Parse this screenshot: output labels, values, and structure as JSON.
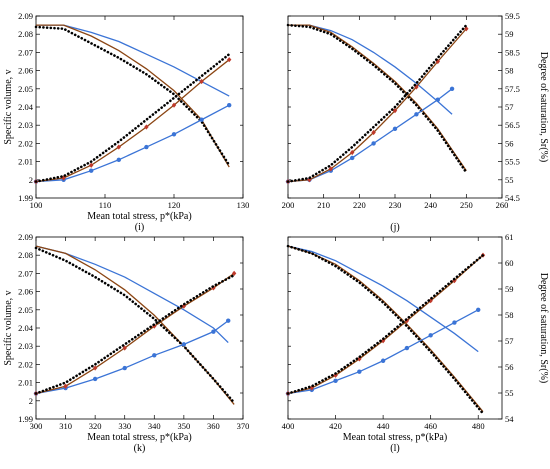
{
  "figure": {
    "colors": {
      "blue": "#3b74d6",
      "red": "#c0392b",
      "brown": "#8b4513",
      "black": "#000000"
    },
    "legend": "none"
  },
  "chart_data": [
    {
      "id": "i",
      "type": "line",
      "caption": "(i)",
      "xlabel": "Mean total stress, p*(kPa)",
      "ylabel": "Specific volume, v",
      "y2label": "",
      "xlim": [
        100,
        130
      ],
      "xticks": [
        100,
        110,
        120,
        130
      ],
      "ylim": [
        1.99,
        2.09
      ],
      "yticks": [
        1.99,
        2,
        2.01,
        2.02,
        2.03,
        2.04,
        2.05,
        2.06,
        2.07,
        2.08,
        2.09
      ],
      "y2lim": [
        54,
        59
      ],
      "y2ticks": [],
      "series": [
        {
          "axis": "y",
          "color": "#3b74d6",
          "style": "solid",
          "x": [
            100,
            104,
            108,
            112,
            116,
            120,
            124,
            128
          ],
          "y": [
            2.085,
            2.085,
            2.081,
            2.076,
            2.069,
            2.062,
            2.054,
            2.046
          ]
        },
        {
          "axis": "y",
          "color": "#8b4513",
          "style": "solid",
          "x": [
            100,
            104,
            108,
            112,
            116,
            120,
            124,
            128
          ],
          "y": [
            2.085,
            2.085,
            2.079,
            2.071,
            2.061,
            2.049,
            2.033,
            2.007
          ]
        },
        {
          "axis": "y",
          "color": "#000000",
          "style": "dotted",
          "x": [
            100,
            104,
            108,
            112,
            116,
            120,
            124,
            128
          ],
          "y": [
            2.084,
            2.083,
            2.075,
            2.067,
            2.058,
            2.047,
            2.032,
            2.008
          ]
        },
        {
          "axis": "y",
          "color": "#3b74d6",
          "style": "solid",
          "marker": "circle",
          "x": [
            100,
            104,
            108,
            112,
            116,
            120,
            124,
            128
          ],
          "y": [
            1.999,
            2.0,
            2.005,
            2.011,
            2.018,
            2.025,
            2.033,
            2.041
          ]
        },
        {
          "axis": "y",
          "color": "#8b4513",
          "style": "solid",
          "marker": "diamond",
          "x": [
            100,
            104,
            108,
            112,
            116,
            120,
            124,
            128
          ],
          "y": [
            1.999,
            2.001,
            2.008,
            2.018,
            2.029,
            2.041,
            2.054,
            2.066
          ]
        },
        {
          "axis": "y",
          "color": "#000000",
          "style": "dotted",
          "x": [
            100,
            104,
            108,
            112,
            116,
            120,
            124,
            128
          ],
          "y": [
            1.999,
            2.002,
            2.01,
            2.021,
            2.033,
            2.045,
            2.057,
            2.069
          ]
        }
      ]
    },
    {
      "id": "j",
      "type": "line",
      "caption": "(j)",
      "xlabel": "",
      "ylabel": "",
      "y2label": "Degree of saturation, Sr(%)",
      "xlim": [
        200,
        260
      ],
      "xticks": [
        200,
        210,
        220,
        230,
        240,
        250,
        260
      ],
      "ylim": [
        1.99,
        2.09
      ],
      "yticks": [],
      "y2lim": [
        54.5,
        59.5
      ],
      "y2ticks": [
        54.5,
        55,
        55.5,
        56,
        56.5,
        57,
        57.5,
        58,
        58.5,
        59,
        59.5
      ],
      "series": [
        {
          "axis": "y",
          "color": "#3b74d6",
          "style": "solid",
          "x": [
            200,
            206,
            212,
            218,
            224,
            230,
            236,
            242,
            246
          ],
          "y": [
            2.085,
            2.085,
            2.082,
            2.077,
            2.07,
            2.062,
            2.053,
            2.043,
            2.036
          ]
        },
        {
          "axis": "y",
          "color": "#8b4513",
          "style": "solid",
          "x": [
            200,
            206,
            212,
            218,
            224,
            230,
            236,
            242,
            250
          ],
          "y": [
            2.085,
            2.085,
            2.081,
            2.073,
            2.064,
            2.054,
            2.042,
            2.028,
            2.005
          ]
        },
        {
          "axis": "y",
          "color": "#000000",
          "style": "dotted",
          "x": [
            200,
            206,
            212,
            218,
            224,
            230,
            236,
            242,
            250
          ],
          "y": [
            2.085,
            2.084,
            2.08,
            2.072,
            2.063,
            2.053,
            2.041,
            2.027,
            2.004
          ]
        },
        {
          "axis": "y",
          "color": "#3b74d6",
          "style": "solid",
          "marker": "circle",
          "x": [
            200,
            206,
            212,
            218,
            224,
            230,
            236,
            242,
            246
          ],
          "y": [
            1.999,
            2.0,
            2.005,
            2.012,
            2.02,
            2.028,
            2.036,
            2.044,
            2.05
          ]
        },
        {
          "axis": "y",
          "color": "#8b4513",
          "style": "solid",
          "marker": "diamond",
          "x": [
            200,
            206,
            212,
            218,
            224,
            230,
            236,
            242,
            250
          ],
          "y": [
            1.999,
            2.0,
            2.006,
            2.015,
            2.026,
            2.038,
            2.051,
            2.065,
            2.083
          ]
        },
        {
          "axis": "y",
          "color": "#000000",
          "style": "dotted",
          "x": [
            200,
            206,
            212,
            218,
            224,
            230,
            236,
            242,
            250
          ],
          "y": [
            1.999,
            2.001,
            2.008,
            2.018,
            2.029,
            2.04,
            2.053,
            2.067,
            2.085
          ]
        }
      ]
    },
    {
      "id": "k",
      "type": "line",
      "caption": "(k)",
      "xlabel": "Mean total stress, p*(kPa)",
      "ylabel": "Specific volume, v",
      "y2label": "",
      "xlim": [
        300,
        370
      ],
      "xticks": [
        300,
        310,
        320,
        330,
        340,
        350,
        360,
        370
      ],
      "ylim": [
        1.99,
        2.09
      ],
      "yticks": [
        1.99,
        2,
        2.01,
        2.02,
        2.03,
        2.04,
        2.05,
        2.06,
        2.07,
        2.08,
        2.09
      ],
      "y2lim": [
        54,
        61
      ],
      "y2ticks": [],
      "series": [
        {
          "axis": "y",
          "color": "#3b74d6",
          "style": "solid",
          "x": [
            300,
            310,
            320,
            330,
            340,
            350,
            360,
            365
          ],
          "y": [
            2.085,
            2.081,
            2.075,
            2.068,
            2.059,
            2.05,
            2.04,
            2.032
          ]
        },
        {
          "axis": "y",
          "color": "#8b4513",
          "style": "solid",
          "x": [
            300,
            310,
            320,
            330,
            340,
            350,
            360,
            367
          ],
          "y": [
            2.085,
            2.081,
            2.072,
            2.061,
            2.047,
            2.03,
            2.012,
            1.998
          ]
        },
        {
          "axis": "y",
          "color": "#000000",
          "style": "dotted",
          "x": [
            300,
            310,
            320,
            330,
            340,
            350,
            360,
            367
          ],
          "y": [
            2.084,
            2.077,
            2.068,
            2.058,
            2.045,
            2.03,
            2.012,
            1.999
          ]
        },
        {
          "axis": "y",
          "color": "#3b74d6",
          "style": "solid",
          "marker": "circle",
          "x": [
            300,
            310,
            320,
            330,
            340,
            350,
            360,
            365
          ],
          "y": [
            2.004,
            2.007,
            2.012,
            2.018,
            2.025,
            2.031,
            2.038,
            2.044
          ]
        },
        {
          "axis": "y",
          "color": "#8b4513",
          "style": "solid",
          "marker": "diamond",
          "x": [
            300,
            310,
            320,
            330,
            340,
            350,
            360,
            367
          ],
          "y": [
            2.004,
            2.008,
            2.018,
            2.029,
            2.041,
            2.052,
            2.062,
            2.07
          ]
        },
        {
          "axis": "y",
          "color": "#000000",
          "style": "dotted",
          "x": [
            300,
            310,
            320,
            330,
            340,
            350,
            360,
            367
          ],
          "y": [
            2.004,
            2.01,
            2.02,
            2.031,
            2.042,
            2.053,
            2.063,
            2.069
          ]
        }
      ]
    },
    {
      "id": "l",
      "type": "line",
      "caption": "(l)",
      "xlabel": "Mean total stress, p*(kPa)",
      "ylabel": "",
      "y2label": "Degree of saturation, Sr(%)",
      "xlim": [
        400,
        490
      ],
      "xticks": [
        400,
        420,
        440,
        460,
        480
      ],
      "ylim": [
        1.99,
        2.09
      ],
      "yticks": [],
      "y2lim": [
        54,
        61
      ],
      "y2ticks": [
        54,
        55,
        56,
        57,
        58,
        59,
        60,
        61
      ],
      "series": [
        {
          "axis": "y",
          "color": "#3b74d6",
          "style": "solid",
          "x": [
            400,
            410,
            420,
            430,
            440,
            450,
            460,
            470,
            480
          ],
          "y": [
            2.085,
            2.082,
            2.077,
            2.07,
            2.063,
            2.055,
            2.046,
            2.037,
            2.027
          ]
        },
        {
          "axis": "y",
          "color": "#8b4513",
          "style": "solid",
          "x": [
            400,
            410,
            420,
            430,
            440,
            450,
            460,
            470,
            482
          ],
          "y": [
            2.085,
            2.081,
            2.075,
            2.066,
            2.055,
            2.042,
            2.028,
            2.013,
            1.994
          ]
        },
        {
          "axis": "y",
          "color": "#000000",
          "style": "dotted",
          "x": [
            400,
            410,
            420,
            430,
            440,
            450,
            460,
            470,
            482
          ],
          "y": [
            2.085,
            2.081,
            2.074,
            2.065,
            2.054,
            2.041,
            2.027,
            2.012,
            1.993
          ]
        },
        {
          "axis": "y",
          "color": "#3b74d6",
          "style": "solid",
          "marker": "circle",
          "x": [
            400,
            410,
            420,
            430,
            440,
            450,
            460,
            470,
            480
          ],
          "y": [
            2.004,
            2.006,
            2.011,
            2.016,
            2.022,
            2.029,
            2.036,
            2.043,
            2.05
          ]
        },
        {
          "axis": "y",
          "color": "#8b4513",
          "style": "solid",
          "marker": "diamond",
          "x": [
            400,
            410,
            420,
            430,
            440,
            450,
            460,
            470,
            482
          ],
          "y": [
            2.004,
            2.007,
            2.014,
            2.023,
            2.033,
            2.044,
            2.055,
            2.066,
            2.08
          ]
        },
        {
          "axis": "y",
          "color": "#000000",
          "style": "dotted",
          "x": [
            400,
            410,
            420,
            430,
            440,
            450,
            460,
            470,
            482
          ],
          "y": [
            2.004,
            2.008,
            2.015,
            2.024,
            2.034,
            2.045,
            2.056,
            2.067,
            2.08
          ]
        }
      ]
    }
  ]
}
